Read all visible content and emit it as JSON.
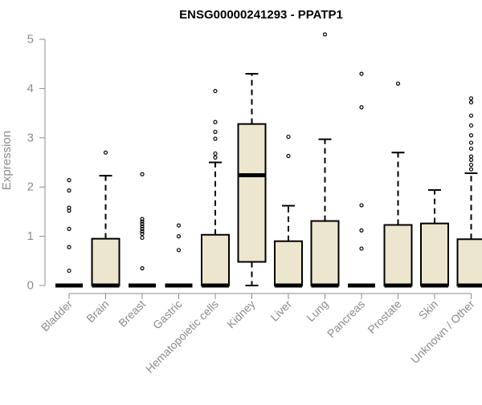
{
  "chart_data": {
    "type": "boxplot",
    "title": "ENSG00000241293 - PPATP1",
    "xlabel": "",
    "ylabel": "Expression",
    "ylim": [
      0,
      5
    ],
    "yticks": [
      0,
      1,
      2,
      3,
      4,
      5
    ],
    "grid": false,
    "legend": "none",
    "colors": {
      "box_fill": "#ede6cf",
      "box_stroke": "#000000",
      "axis": "#8c8c8c",
      "tick_label": "#8c8c8c",
      "title": "#000000"
    },
    "categories": [
      "Bladder",
      "Brain",
      "Breast",
      "Gastric",
      "Hematopoietic cells",
      "Kidney",
      "Liver",
      "Lung",
      "Pancreas",
      "Prostate",
      "Skin",
      "Unknown / Other"
    ],
    "boxes": [
      {
        "q1": 0,
        "median": 0,
        "q3": 0,
        "whisker_low": 0,
        "whisker_high": 0,
        "outliers": [
          0.3,
          0.78,
          1.15,
          1.52,
          1.58,
          1.93,
          2.14
        ]
      },
      {
        "q1": 0,
        "median": 0,
        "q3": 0.95,
        "whisker_low": 0,
        "whisker_high": 2.23,
        "outliers": [
          2.7
        ]
      },
      {
        "q1": 0,
        "median": 0,
        "q3": 0,
        "whisker_low": 0,
        "whisker_high": 0,
        "outliers": [
          0.35,
          0.97,
          1.05,
          1.1,
          1.15,
          1.2,
          1.25,
          1.3,
          1.35,
          2.26
        ]
      },
      {
        "q1": 0,
        "median": 0,
        "q3": 0,
        "whisker_low": 0,
        "whisker_high": 0,
        "outliers": [
          0.72,
          1.0,
          1.22
        ]
      },
      {
        "q1": 0,
        "median": 0,
        "q3": 1.03,
        "whisker_low": 0,
        "whisker_high": 2.5,
        "outliers": [
          2.6,
          2.68,
          2.98,
          3.12,
          3.32,
          3.95
        ]
      },
      {
        "q1": 0.48,
        "median": 2.24,
        "q3": 3.28,
        "whisker_low": 0,
        "whisker_high": 4.3,
        "outliers": []
      },
      {
        "q1": 0,
        "median": 0,
        "q3": 0.9,
        "whisker_low": 0,
        "whisker_high": 1.62,
        "outliers": [
          2.63,
          3.02
        ]
      },
      {
        "q1": 0,
        "median": 0,
        "q3": 1.31,
        "whisker_low": 0,
        "whisker_high": 2.97,
        "outliers": [
          5.1
        ]
      },
      {
        "q1": 0,
        "median": 0,
        "q3": 0,
        "whisker_low": 0,
        "whisker_high": 0,
        "outliers": [
          0.75,
          1.12,
          1.63,
          3.62,
          4.3
        ]
      },
      {
        "q1": 0,
        "median": 0,
        "q3": 1.23,
        "whisker_low": 0,
        "whisker_high": 2.7,
        "outliers": [
          4.1
        ]
      },
      {
        "q1": 0,
        "median": 0,
        "q3": 1.26,
        "whisker_low": 0,
        "whisker_high": 1.94,
        "outliers": []
      },
      {
        "q1": 0,
        "median": 0,
        "q3": 0.94,
        "whisker_low": 0,
        "whisker_high": 2.28,
        "outliers": [
          2.36,
          2.45,
          2.55,
          2.62,
          2.78,
          2.9,
          3.05,
          3.25,
          3.45,
          3.72,
          3.8
        ]
      }
    ]
  }
}
